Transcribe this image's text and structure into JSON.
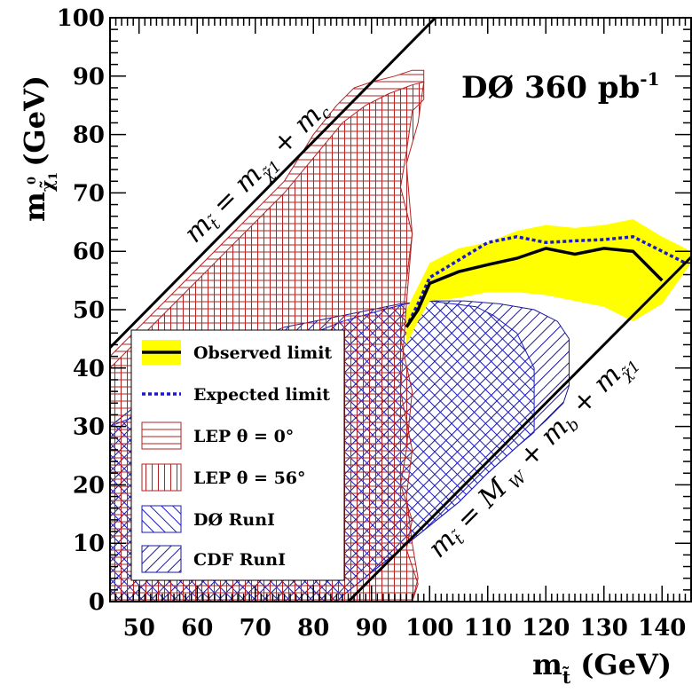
{
  "chart_data": {
    "type": "area",
    "title": "DØ 360 pb",
    "title_sup": "-1",
    "xlabel": "m",
    "xlabel_sub": "t̃",
    "xlabel_unit": "(GeV)",
    "ylabel": "m",
    "ylabel_sub": "χ̃",
    "ylabel_sub_sub": "1",
    "ylabel_sup": "0",
    "ylabel_unit": "(GeV)",
    "xlim": [
      45,
      145
    ],
    "ylim": [
      0,
      100
    ],
    "x_ticks": [
      "50",
      "60",
      "70",
      "80",
      "90",
      "100",
      "110",
      "120",
      "130",
      "140"
    ],
    "y_ticks": [
      "0",
      "10",
      "20",
      "30",
      "40",
      "50",
      "60",
      "70",
      "80",
      "90",
      "100"
    ],
    "diagonal_labels": {
      "upper": "m_t̃ = m_χ̃1 + m_c",
      "lower": "m_t̃ = M_W + m_b + m_χ̃1"
    },
    "legend_position": "bottom-left",
    "legend": [
      {
        "label": "Observed limit",
        "key": "observed"
      },
      {
        "label": "Expected limit",
        "key": "expected"
      },
      {
        "label": "LEP    θ = 0°",
        "key": "lep0"
      },
      {
        "label": "LEP    θ = 56°",
        "key": "lep56"
      },
      {
        "label": "DØ RunI",
        "key": "d0"
      },
      {
        "label": "CDF RunI",
        "key": "cdf"
      }
    ],
    "series": [
      {
        "name": "Observed limit",
        "x": [
          96,
          98,
          100,
          105,
          110,
          115,
          120,
          125,
          130,
          135,
          140
        ],
        "y": [
          47,
          50,
          54.5,
          56.5,
          57.7,
          58.8,
          60.5,
          59.5,
          60.5,
          60,
          55
        ]
      },
      {
        "name": "Expected limit",
        "x": [
          96,
          98,
          100,
          105,
          110,
          115,
          120,
          125,
          130,
          135,
          140,
          144
        ],
        "y": [
          47,
          51,
          55.5,
          58.5,
          61.5,
          62.5,
          61.5,
          61.8,
          62,
          62.5,
          60,
          58
        ]
      },
      {
        "name": "Observed band",
        "x": [
          96,
          98,
          100,
          105,
          110,
          115,
          120,
          125,
          130,
          135,
          140,
          145,
          145,
          140,
          135,
          130,
          125,
          120,
          115,
          110,
          105,
          100,
          98,
          96
        ],
        "y": [
          50,
          54,
          58,
          60.5,
          61.5,
          63.5,
          64.5,
          64,
          64.5,
          65.5,
          62.5,
          60,
          58,
          51,
          48,
          50.5,
          51.5,
          52.5,
          53,
          53,
          52,
          51.5,
          48,
          44
        ]
      },
      {
        "name": "LEP θ = 0°",
        "x": [
          45,
          45,
          75,
          80,
          84,
          87,
          90,
          94,
          97,
          99,
          99,
          97,
          96,
          95,
          97,
          96,
          95,
          97,
          96,
          97,
          98,
          97
        ],
        "y": [
          0,
          42,
          72,
          80,
          85,
          88,
          89,
          90,
          91,
          91,
          86,
          84,
          77,
          71,
          63,
          51,
          36,
          26,
          18,
          10,
          4,
          0
        ]
      },
      {
        "name": "LEP θ = 56°",
        "x": [
          45,
          45,
          75,
          80,
          85,
          89,
          93,
          97,
          99,
          98,
          96,
          97,
          96,
          95,
          97,
          96,
          95,
          97,
          96,
          97,
          98,
          97
        ],
        "y": [
          0,
          40,
          70,
          76,
          82,
          85,
          87,
          88.5,
          89,
          82,
          75,
          63,
          55,
          45,
          36,
          26,
          20,
          14,
          9,
          6,
          3,
          0
        ]
      },
      {
        "name": "DØ RunI",
        "x": [
          45,
          84,
          85,
          90,
          95,
          100,
          105,
          110,
          115,
          118,
          118,
          115,
          111,
          108,
          104,
          100,
          96,
          92,
          85,
          80,
          75,
          70,
          60,
          50,
          45
        ],
        "y": [
          0,
          0,
          1,
          5,
          9,
          13,
          17,
          22,
          26.5,
          29,
          40,
          46,
          49,
          50.5,
          51,
          51.5,
          51,
          50,
          48,
          46,
          44,
          42,
          38,
          32,
          30
        ]
      },
      {
        "name": "CDF RunI",
        "x": [
          45,
          84,
          85,
          90,
          95,
          100,
          105,
          110,
          115,
          120,
          123,
          124,
          124,
          122,
          118,
          112,
          106,
          100,
          95,
          90,
          85,
          80,
          75,
          70,
          60,
          50,
          45
        ],
        "y": [
          0,
          0,
          1,
          5,
          9,
          13,
          17,
          22,
          26.5,
          31,
          34,
          37,
          45,
          48,
          50,
          51,
          51.5,
          51.5,
          51,
          50,
          49,
          48,
          47,
          45,
          41,
          34,
          30
        ]
      }
    ],
    "diagonals": {
      "upper": {
        "x": [
          45,
          101
        ],
        "y": [
          43.5,
          100
        ]
      },
      "lower": {
        "x": [
          86,
          145
        ],
        "y": [
          0,
          59
        ]
      }
    },
    "colors": {
      "observed_band": "#ffff00",
      "observed_line": "#000000",
      "expected_line": "#1a1acc",
      "lep": "#b22222",
      "d0": "#1a1acc",
      "cdf": "#1a1a99"
    }
  }
}
